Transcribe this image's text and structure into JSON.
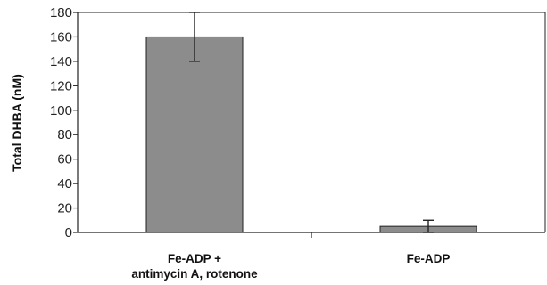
{
  "chart_data": {
    "type": "bar",
    "ylabel": "Total DHBA (nM)",
    "xlabel": "",
    "ylim": [
      0,
      180
    ],
    "yticks": [
      0,
      20,
      40,
      60,
      80,
      100,
      120,
      140,
      160,
      180
    ],
    "categories": [
      [
        "Fe-ADP +",
        "antimycin A, rotenone"
      ],
      [
        "Fe-ADP"
      ]
    ],
    "values": [
      160,
      5
    ],
    "errors": [
      20,
      5
    ],
    "grid": false,
    "bar_color": "#8c8c8c"
  }
}
